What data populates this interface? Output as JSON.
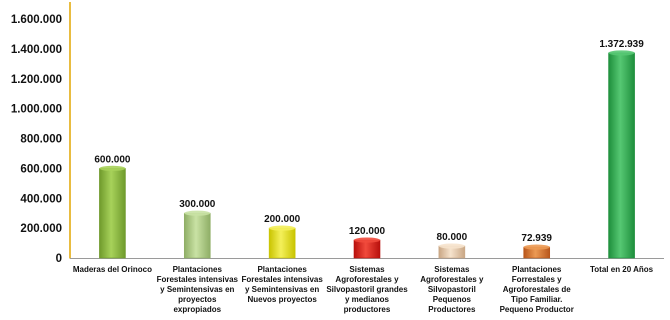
{
  "chart_data": {
    "type": "bar",
    "title": "",
    "xlabel": "",
    "ylabel": "",
    "ylim": [
      0,
      1600000
    ],
    "yticks": [
      0,
      200000,
      400000,
      600000,
      800000,
      1000000,
      1200000,
      1400000,
      1600000
    ],
    "ytick_labels": [
      "0",
      "200.000",
      "400.000",
      "600.000",
      "800.000",
      "1.000.000",
      "1.200.000",
      "1.400.000",
      "1.600.000"
    ],
    "grid": false,
    "legend": "none",
    "categories": [
      "Maderas del Orinoco",
      "Plantaciones\nForestales intensivas\ny Semintensivas en\nproyectos\nexpropiados",
      "Plantaciones\nForestales intensivas\ny Semintensivas en\nNuevos proyectos",
      "Sistemas\nAgroforestales y\nSilvopastoril grandes\ny medianos\nproductores",
      "Sistemas\nAgroforestales y\nSilvopastoril\nPequenos\nProductores",
      "Plantaciones\nForrestales y\nAgroforestales de\nTipo Familiar.\nPequeno Productor",
      "Total  en 20 Años"
    ],
    "values": [
      600000,
      300000,
      200000,
      120000,
      80000,
      72939,
      1372939
    ],
    "data_labels": [
      "600.000",
      "300.000",
      "200.000",
      "120.000",
      "80.000",
      "72.939",
      "1.372.939"
    ],
    "colors": [
      [
        "#6f9a2c",
        "#a7d25a"
      ],
      [
        "#8fae66",
        "#c9e2a4"
      ],
      [
        "#c9c400",
        "#f4f05a"
      ],
      [
        "#b8100c",
        "#f14a3c"
      ],
      [
        "#c9a684",
        "#f6e3cd"
      ],
      [
        "#b8561b",
        "#ec9a54"
      ],
      [
        "#1e8f3c",
        "#56c873"
      ]
    ],
    "axis_color": "#e2a600"
  }
}
